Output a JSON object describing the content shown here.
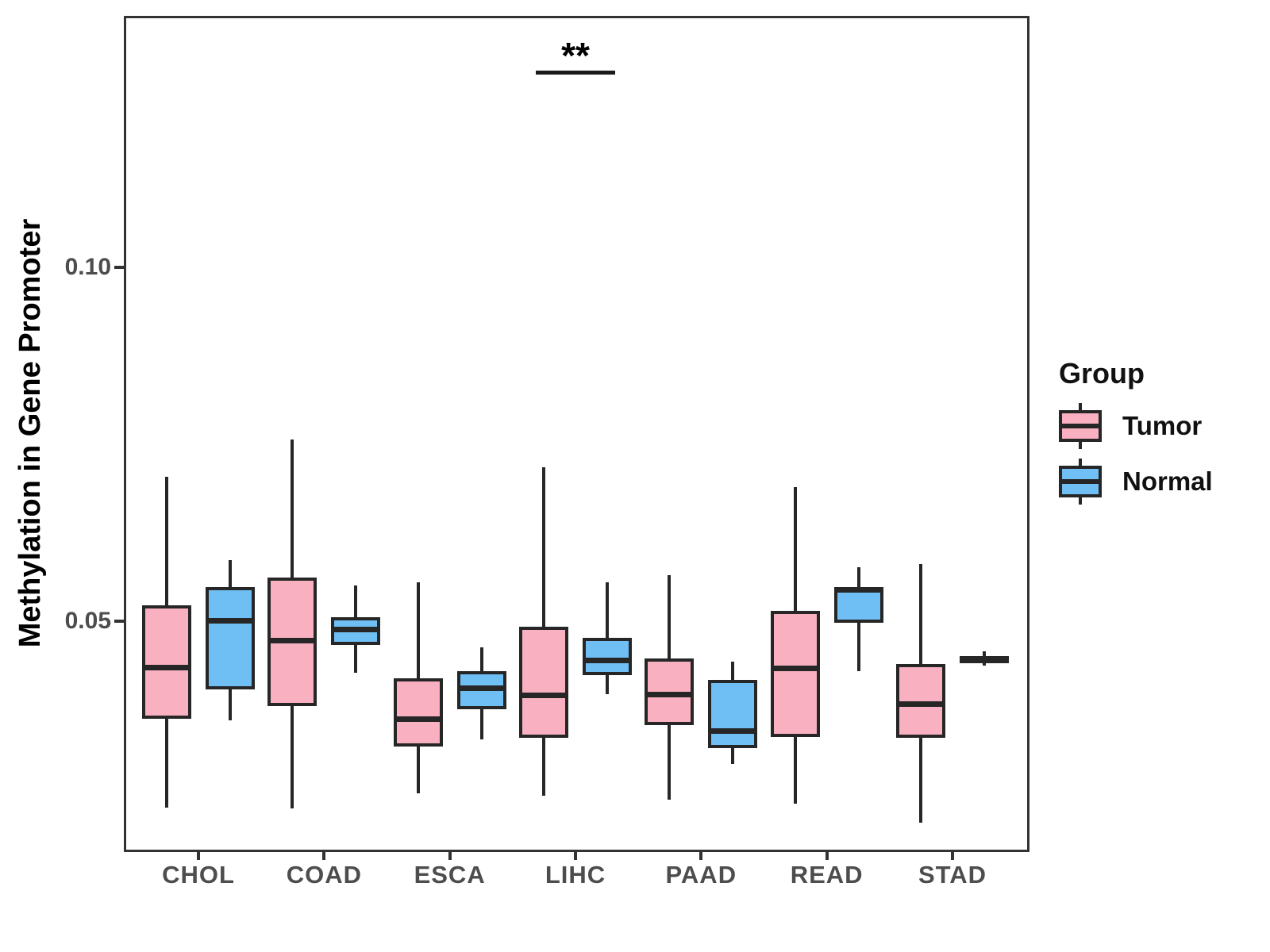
{
  "figure": {
    "y_axis_title": "Methylation in Gene Promoter",
    "background": "#ffffff"
  },
  "legend": {
    "title": "Group",
    "items": [
      {
        "label": "Tumor",
        "color": "#F9B1C1"
      },
      {
        "label": "Normal",
        "color": "#6FBFF4"
      }
    ]
  },
  "chart_data": {
    "type": "boxplot",
    "title": "",
    "xlabel": "",
    "ylabel": "Methylation in Gene Promoter",
    "categories": [
      "CHOL",
      "COAD",
      "ESCA",
      "LIHC",
      "PAAD",
      "READ",
      "STAD"
    ],
    "yticks": [
      {
        "label": "0.05",
        "value": 0.05
      },
      {
        "label": "0.10",
        "value": 0.1
      }
    ],
    "ylim": [
      0.0177,
      0.1353
    ],
    "grid": false,
    "legend_position": "right",
    "line_color": "#262626",
    "series": [
      {
        "name": "Tumor",
        "color": "#F9B1C1",
        "boxes": [
          {
            "category": "CHOL",
            "lo": 0.0237,
            "q1": 0.0362,
            "median": 0.0434,
            "q3": 0.0522,
            "hi": 0.0704
          },
          {
            "category": "COAD",
            "lo": 0.0235,
            "q1": 0.038,
            "median": 0.0473,
            "q3": 0.0562,
            "hi": 0.0757
          },
          {
            "category": "ESCA",
            "lo": 0.0257,
            "q1": 0.0323,
            "median": 0.0361,
            "q3": 0.0419,
            "hi": 0.0555
          },
          {
            "category": "LIHC",
            "lo": 0.0253,
            "q1": 0.0335,
            "median": 0.0395,
            "q3": 0.0492,
            "hi": 0.0717
          },
          {
            "category": "PAAD",
            "lo": 0.0248,
            "q1": 0.0353,
            "median": 0.0396,
            "q3": 0.0447,
            "hi": 0.0565
          },
          {
            "category": "READ",
            "lo": 0.0242,
            "q1": 0.0336,
            "median": 0.0433,
            "q3": 0.0515,
            "hi": 0.0689
          },
          {
            "category": "STAD",
            "lo": 0.0215,
            "q1": 0.0335,
            "median": 0.0383,
            "q3": 0.0439,
            "hi": 0.0581
          }
        ]
      },
      {
        "name": "Normal",
        "color": "#6FBFF4",
        "boxes": [
          {
            "category": "CHOL",
            "lo": 0.036,
            "q1": 0.0404,
            "median": 0.0501,
            "q3": 0.0548,
            "hi": 0.0586
          },
          {
            "category": "COAD",
            "lo": 0.0427,
            "q1": 0.0466,
            "median": 0.0488,
            "q3": 0.0506,
            "hi": 0.055
          },
          {
            "category": "ESCA",
            "lo": 0.0333,
            "q1": 0.0375,
            "median": 0.0405,
            "q3": 0.0429,
            "hi": 0.0463
          },
          {
            "category": "LIHC",
            "lo": 0.0397,
            "q1": 0.0424,
            "median": 0.0445,
            "q3": 0.0476,
            "hi": 0.0555
          },
          {
            "category": "PAAD",
            "lo": 0.0298,
            "q1": 0.0321,
            "median": 0.0345,
            "q3": 0.0417,
            "hi": 0.0443
          },
          {
            "category": "READ",
            "lo": 0.0429,
            "q1": 0.0498,
            "median": 0.0544,
            "q3": 0.0548,
            "hi": 0.0576
          },
          {
            "category": "STAD",
            "lo": 0.0437,
            "q1": 0.0444,
            "median": 0.0447,
            "q3": 0.045,
            "hi": 0.0457
          }
        ]
      }
    ],
    "significance": [
      {
        "category": "LIHC",
        "label": "**",
        "bar_y": 0.1275,
        "label_y": 0.13
      }
    ]
  }
}
